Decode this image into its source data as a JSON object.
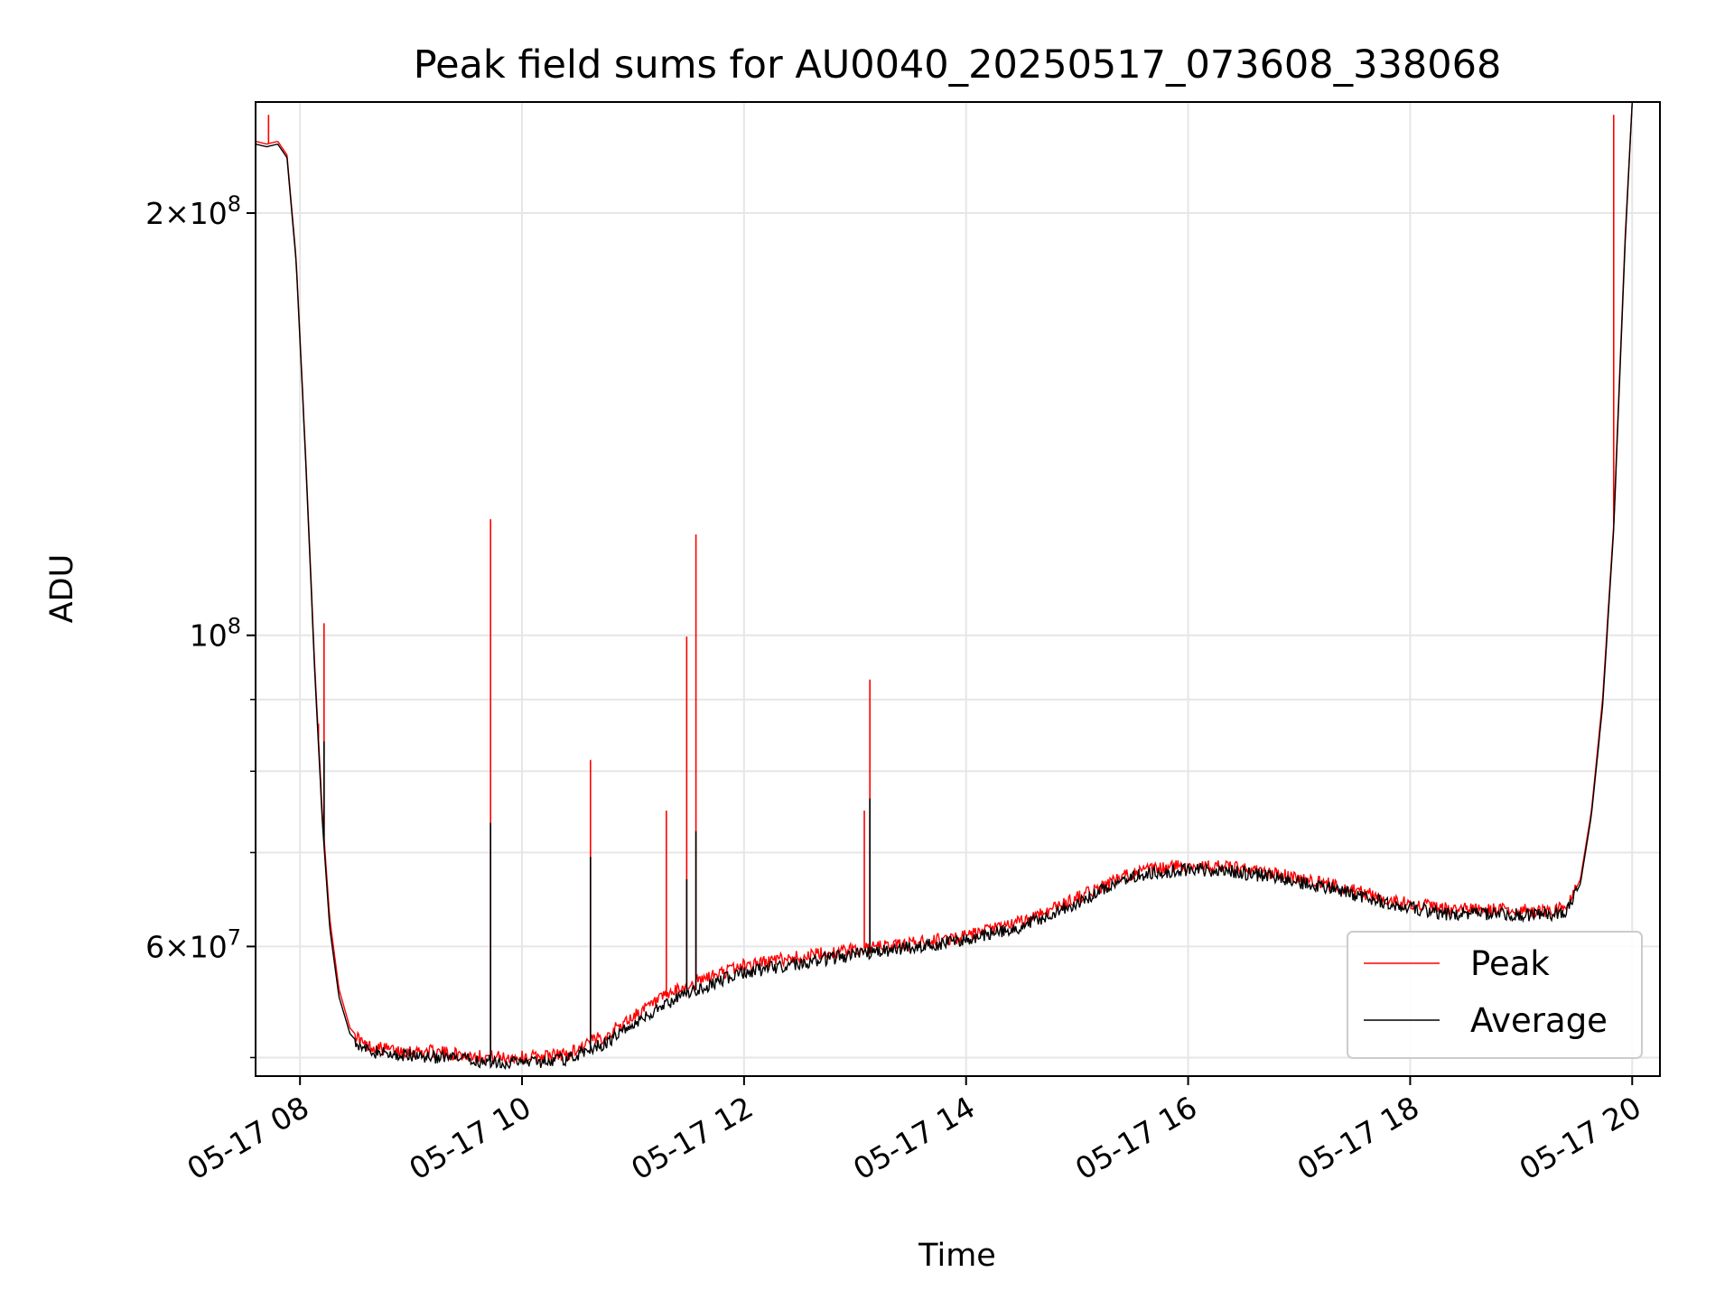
{
  "chart_data": {
    "type": "line",
    "title": "Peak field sums for AU0040_20250517_073608_338068",
    "xlabel": "Time",
    "ylabel": "ADU",
    "y_scale": "log",
    "grid": true,
    "legend_position": "lower-right",
    "xlim": [
      "05-17 07:36",
      "05-17 20:15"
    ],
    "ylim": [
      48500000,
      240000000
    ],
    "x_ticks": [
      "05-17 08",
      "05-17 10",
      "05-17 12",
      "05-17 14",
      "05-17 16",
      "05-17 18",
      "05-17 20"
    ],
    "y_ticks": [
      {
        "value": 200000000,
        "mantissa": "2",
        "exponent": "8",
        "form": "sci"
      },
      {
        "value": 100000000,
        "mantissa": "10",
        "exponent": "8",
        "form": "pow"
      },
      {
        "value": 60000000,
        "mantissa": "6",
        "exponent": "7",
        "form": "sci"
      }
    ],
    "y_minor_ticks": [
      50000000,
      70000000,
      80000000,
      90000000
    ],
    "series": [
      {
        "name": "Peak",
        "color": "#ff0000",
        "points": [
          [
            "05-17 07:36",
            225000000
          ],
          [
            "05-17 07:42",
            224000000
          ],
          [
            "05-17 07:48",
            225000000
          ],
          [
            "05-17 07:53",
            220000000
          ],
          [
            "05-17 07:58",
            185000000
          ],
          [
            "05-17 08:03",
            135000000
          ],
          [
            "05-17 08:08",
            95000000
          ],
          [
            "05-17 08:12",
            75000000
          ],
          [
            "05-17 08:16",
            63000000
          ],
          [
            "05-17 08:21",
            56000000
          ],
          [
            "05-17 08:27",
            52500000
          ],
          [
            "05-17 08:35",
            51000000
          ],
          [
            "05-17 08:50",
            50600000
          ],
          [
            "05-17 09:10",
            50500000
          ],
          [
            "05-17 09:30",
            50200000
          ],
          [
            "05-17 09:50",
            50000000
          ],
          [
            "05-17 10:10",
            50100000
          ],
          [
            "05-17 10:25",
            50300000
          ],
          [
            "05-17 10:35",
            51200000
          ],
          [
            "05-17 10:45",
            51800000
          ],
          [
            "05-17 11:00",
            53500000
          ],
          [
            "05-17 11:20",
            55500000
          ],
          [
            "05-17 11:40",
            57000000
          ],
          [
            "05-17 12:00",
            58200000
          ],
          [
            "05-17 12:30",
            59000000
          ],
          [
            "05-17 13:00",
            59700000
          ],
          [
            "05-17 13:30",
            60300000
          ],
          [
            "05-17 14:00",
            61000000
          ],
          [
            "05-17 14:30",
            62500000
          ],
          [
            "05-17 15:00",
            65000000
          ],
          [
            "05-17 15:30",
            67700000
          ],
          [
            "05-17 15:55",
            68500000
          ],
          [
            "05-17 16:20",
            68400000
          ],
          [
            "05-17 16:50",
            67500000
          ],
          [
            "05-17 17:20",
            66300000
          ],
          [
            "05-17 17:50",
            64700000
          ],
          [
            "05-17 18:20",
            63800000
          ],
          [
            "05-17 18:50",
            63700000
          ],
          [
            "05-17 19:15",
            63600000
          ],
          [
            "05-17 19:25",
            64000000
          ],
          [
            "05-17 19:32",
            67000000
          ],
          [
            "05-17 19:38",
            75000000
          ],
          [
            "05-17 19:44",
            90000000
          ],
          [
            "05-17 19:50",
            120000000
          ],
          [
            "05-17 19:56",
            190000000
          ],
          [
            "05-17 20:00",
            240000000
          ]
        ],
        "spikes": [
          [
            "05-17 07:43",
            235000000
          ],
          [
            "05-17 08:10",
            86500000
          ],
          [
            "05-17 08:13",
            102000000
          ],
          [
            "05-17 09:43",
            121000000
          ],
          [
            "05-17 10:37",
            81500000
          ],
          [
            "05-17 11:18",
            75000000
          ],
          [
            "05-17 11:29",
            99800000
          ],
          [
            "05-17 11:34",
            118000000
          ],
          [
            "05-17 13:05",
            75000000
          ],
          [
            "05-17 13:08",
            93000000
          ],
          [
            "05-17 19:50",
            235000000
          ]
        ]
      },
      {
        "name": "Average",
        "color": "#000000",
        "points": [
          [
            "05-17 07:36",
            224000000
          ],
          [
            "05-17 07:42",
            223000000
          ],
          [
            "05-17 07:48",
            224000000
          ],
          [
            "05-17 07:53",
            219000000
          ],
          [
            "05-17 07:58",
            184000000
          ],
          [
            "05-17 08:03",
            134000000
          ],
          [
            "05-17 08:08",
            94000000
          ],
          [
            "05-17 08:12",
            74000000
          ],
          [
            "05-17 08:16",
            62000000
          ],
          [
            "05-17 08:21",
            55300000
          ],
          [
            "05-17 08:27",
            52000000
          ],
          [
            "05-17 08:35",
            50600000
          ],
          [
            "05-17 08:50",
            50200000
          ],
          [
            "05-17 09:10",
            50100000
          ],
          [
            "05-17 09:30",
            49800000
          ],
          [
            "05-17 09:50",
            49600000
          ],
          [
            "05-17 10:10",
            49700000
          ],
          [
            "05-17 10:25",
            49900000
          ],
          [
            "05-17 10:35",
            50600000
          ],
          [
            "05-17 10:45",
            51200000
          ],
          [
            "05-17 11:00",
            52800000
          ],
          [
            "05-17 11:20",
            54800000
          ],
          [
            "05-17 11:40",
            56300000
          ],
          [
            "05-17 12:00",
            57500000
          ],
          [
            "05-17 12:30",
            58400000
          ],
          [
            "05-17 13:00",
            59200000
          ],
          [
            "05-17 13:30",
            59900000
          ],
          [
            "05-17 14:00",
            60600000
          ],
          [
            "05-17 14:30",
            62000000
          ],
          [
            "05-17 15:00",
            64500000
          ],
          [
            "05-17 15:30",
            67300000
          ],
          [
            "05-17 15:55",
            68100000
          ],
          [
            "05-17 16:20",
            68000000
          ],
          [
            "05-17 16:50",
            67100000
          ],
          [
            "05-17 17:20",
            65900000
          ],
          [
            "05-17 17:50",
            64300000
          ],
          [
            "05-17 18:20",
            63300000
          ],
          [
            "05-17 18:50",
            63300000
          ],
          [
            "05-17 19:15",
            63200000
          ],
          [
            "05-17 19:25",
            63600000
          ],
          [
            "05-17 19:32",
            66500000
          ],
          [
            "05-17 19:38",
            74500000
          ],
          [
            "05-17 19:44",
            89000000
          ],
          [
            "05-17 19:50",
            119000000
          ],
          [
            "05-17 19:56",
            188000000
          ],
          [
            "05-17 20:00",
            240000000
          ]
        ],
        "spikes": [
          [
            "05-17 08:13",
            84000000
          ],
          [
            "05-17 09:43",
            73500000
          ],
          [
            "05-17 10:37",
            69500000
          ],
          [
            "05-17 11:29",
            67000000
          ],
          [
            "05-17 11:34",
            72500000
          ],
          [
            "05-17 13:08",
            76500000
          ]
        ]
      }
    ]
  }
}
